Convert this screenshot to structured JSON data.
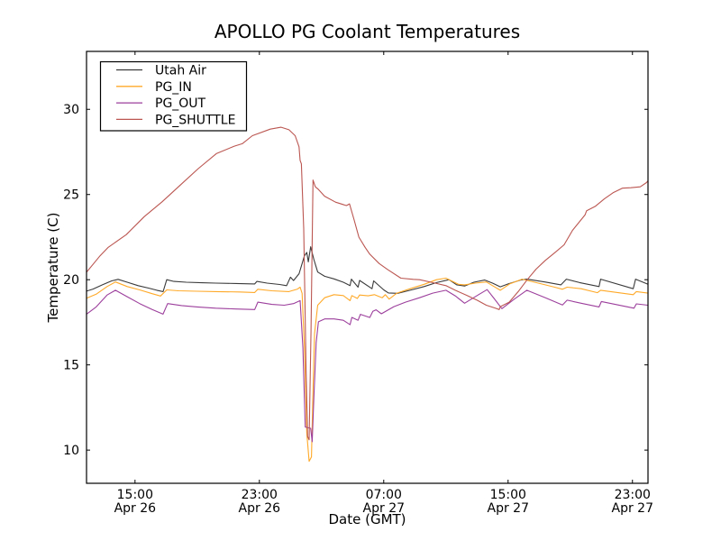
{
  "title": "APOLLO PG Coolant Temperatures",
  "chart_data": {
    "type": "line",
    "title": "APOLLO PG Coolant Temperatures",
    "xlabel": "Date (GMT)",
    "ylabel": "Temperature (C)",
    "x_unit": "hours since Apr 26 12:00 GMT",
    "xlim": [
      -0.12,
      36.0
    ],
    "ylim": [
      8.05,
      33.4
    ],
    "grid": false,
    "legend_position": "upper left",
    "frame_color": "#000000",
    "yticks": [
      10,
      15,
      20,
      25,
      30
    ],
    "xticks": [
      {
        "pos": 3,
        "time": "15:00",
        "date": "Apr 26"
      },
      {
        "pos": 11,
        "time": "23:00",
        "date": "Apr 26"
      },
      {
        "pos": 19,
        "time": "07:00",
        "date": "Apr 27"
      },
      {
        "pos": 27,
        "time": "15:00",
        "date": "Apr 27"
      },
      {
        "pos": 35,
        "time": "23:00",
        "date": "Apr 27"
      }
    ],
    "series": [
      {
        "name": "Utah Air",
        "color": "#3a3a3a",
        "points": [
          [
            -0.12,
            19.33
          ],
          [
            0.3,
            19.45
          ],
          [
            0.9,
            19.7
          ],
          [
            1.5,
            19.93
          ],
          [
            1.91,
            20.02
          ],
          [
            2.5,
            19.85
          ],
          [
            3.2,
            19.65
          ],
          [
            3.9,
            19.5
          ],
          [
            4.4,
            19.38
          ],
          [
            4.81,
            19.3
          ],
          [
            5.04,
            20.0
          ],
          [
            5.5,
            19.9
          ],
          [
            6.3,
            19.85
          ],
          [
            7.3,
            19.82
          ],
          [
            8.2,
            19.8
          ],
          [
            9.5,
            19.78
          ],
          [
            10.7,
            19.75
          ],
          [
            10.84,
            19.9
          ],
          [
            11.5,
            19.8
          ],
          [
            12.3,
            19.72
          ],
          [
            12.75,
            19.65
          ],
          [
            13.0,
            20.15
          ],
          [
            13.2,
            19.95
          ],
          [
            13.55,
            20.35
          ],
          [
            13.9,
            21.4
          ],
          [
            14.05,
            21.6
          ],
          [
            14.15,
            21.05
          ],
          [
            14.3,
            21.93
          ],
          [
            14.5,
            21.2
          ],
          [
            14.75,
            20.45
          ],
          [
            15.2,
            20.2
          ],
          [
            15.8,
            20.05
          ],
          [
            16.4,
            19.85
          ],
          [
            16.83,
            19.65
          ],
          [
            16.92,
            20.03
          ],
          [
            17.35,
            19.56
          ],
          [
            17.45,
            19.96
          ],
          [
            18.25,
            19.47
          ],
          [
            18.35,
            19.93
          ],
          [
            19.0,
            19.4
          ],
          [
            19.3,
            19.22
          ],
          [
            19.9,
            19.2
          ],
          [
            20.7,
            19.38
          ],
          [
            21.6,
            19.6
          ],
          [
            22.4,
            19.83
          ],
          [
            23.2,
            20.0
          ],
          [
            23.7,
            19.7
          ],
          [
            24.2,
            19.63
          ],
          [
            24.8,
            19.85
          ],
          [
            25.5,
            19.98
          ],
          [
            26.0,
            19.8
          ],
          [
            26.5,
            19.58
          ],
          [
            27.0,
            19.75
          ],
          [
            27.8,
            19.98
          ],
          [
            28.2,
            20.03
          ],
          [
            29.4,
            19.86
          ],
          [
            30.4,
            19.7
          ],
          [
            30.75,
            20.03
          ],
          [
            31.6,
            19.83
          ],
          [
            32.85,
            19.6
          ],
          [
            32.95,
            20.03
          ],
          [
            35.05,
            19.47
          ],
          [
            35.2,
            20.03
          ],
          [
            36.0,
            19.73
          ]
        ]
      },
      {
        "name": "PG_IN",
        "color": "#ffa928",
        "points": [
          [
            -0.12,
            18.91
          ],
          [
            0.5,
            19.15
          ],
          [
            1.2,
            19.6
          ],
          [
            1.74,
            19.87
          ],
          [
            2.5,
            19.6
          ],
          [
            3.3,
            19.4
          ],
          [
            4.1,
            19.18
          ],
          [
            4.64,
            19.04
          ],
          [
            5.04,
            19.4
          ],
          [
            5.8,
            19.35
          ],
          [
            7.0,
            19.32
          ],
          [
            8.2,
            19.3
          ],
          [
            9.7,
            19.28
          ],
          [
            10.7,
            19.25
          ],
          [
            10.9,
            19.44
          ],
          [
            11.8,
            19.35
          ],
          [
            12.9,
            19.3
          ],
          [
            13.45,
            19.45
          ],
          [
            13.62,
            19.56
          ],
          [
            13.75,
            19.2
          ],
          [
            13.9,
            16.0
          ],
          [
            14.05,
            11.0
          ],
          [
            14.2,
            9.34
          ],
          [
            14.35,
            9.6
          ],
          [
            14.45,
            13.5
          ],
          [
            14.55,
            16.83
          ],
          [
            14.75,
            18.5
          ],
          [
            15.2,
            18.94
          ],
          [
            15.8,
            19.12
          ],
          [
            16.4,
            19.07
          ],
          [
            16.83,
            18.77
          ],
          [
            16.95,
            19.07
          ],
          [
            17.3,
            18.9
          ],
          [
            17.45,
            19.1
          ],
          [
            18.0,
            19.05
          ],
          [
            18.4,
            19.12
          ],
          [
            18.9,
            18.94
          ],
          [
            19.1,
            19.12
          ],
          [
            19.35,
            18.86
          ],
          [
            19.85,
            19.21
          ],
          [
            20.7,
            19.47
          ],
          [
            21.6,
            19.73
          ],
          [
            22.4,
            20.0
          ],
          [
            23.0,
            20.09
          ],
          [
            23.8,
            19.73
          ],
          [
            24.2,
            19.7
          ],
          [
            24.9,
            19.8
          ],
          [
            25.6,
            19.87
          ],
          [
            26.1,
            19.6
          ],
          [
            26.5,
            19.38
          ],
          [
            27.1,
            19.75
          ],
          [
            27.9,
            20.03
          ],
          [
            28.8,
            19.83
          ],
          [
            30.0,
            19.56
          ],
          [
            30.5,
            19.44
          ],
          [
            30.8,
            19.56
          ],
          [
            31.7,
            19.47
          ],
          [
            32.75,
            19.24
          ],
          [
            32.95,
            19.38
          ],
          [
            35.05,
            19.12
          ],
          [
            35.25,
            19.3
          ],
          [
            36.0,
            19.21
          ]
        ]
      },
      {
        "name": "PG_OUT",
        "color": "#9c3f9c",
        "points": [
          [
            -0.12,
            17.98
          ],
          [
            0.5,
            18.4
          ],
          [
            1.2,
            19.1
          ],
          [
            1.74,
            19.38
          ],
          [
            2.5,
            19.0
          ],
          [
            3.3,
            18.6
          ],
          [
            4.1,
            18.25
          ],
          [
            4.8,
            17.98
          ],
          [
            5.1,
            18.6
          ],
          [
            6.0,
            18.48
          ],
          [
            7.0,
            18.4
          ],
          [
            8.2,
            18.33
          ],
          [
            9.5,
            18.28
          ],
          [
            10.7,
            18.25
          ],
          [
            10.9,
            18.68
          ],
          [
            11.8,
            18.55
          ],
          [
            12.6,
            18.5
          ],
          [
            13.2,
            18.6
          ],
          [
            13.62,
            18.77
          ],
          [
            13.8,
            16.0
          ],
          [
            13.95,
            11.35
          ],
          [
            14.3,
            11.28
          ],
          [
            14.4,
            10.49
          ],
          [
            14.5,
            13.0
          ],
          [
            14.65,
            16.3
          ],
          [
            14.8,
            17.53
          ],
          [
            15.2,
            17.7
          ],
          [
            15.8,
            17.7
          ],
          [
            16.4,
            17.62
          ],
          [
            16.83,
            17.36
          ],
          [
            16.95,
            17.79
          ],
          [
            17.35,
            17.62
          ],
          [
            17.5,
            17.97
          ],
          [
            18.1,
            17.78
          ],
          [
            18.3,
            18.14
          ],
          [
            18.5,
            18.23
          ],
          [
            18.85,
            18.0
          ],
          [
            19.65,
            18.42
          ],
          [
            20.4,
            18.68
          ],
          [
            21.3,
            18.94
          ],
          [
            22.15,
            19.21
          ],
          [
            23.0,
            19.38
          ],
          [
            23.6,
            19.05
          ],
          [
            24.2,
            18.62
          ],
          [
            25.1,
            19.12
          ],
          [
            25.65,
            19.42
          ],
          [
            26.1,
            18.9
          ],
          [
            26.6,
            18.3
          ],
          [
            27.4,
            18.86
          ],
          [
            28.2,
            19.38
          ],
          [
            29.4,
            18.94
          ],
          [
            30.5,
            18.52
          ],
          [
            30.8,
            18.8
          ],
          [
            31.7,
            18.62
          ],
          [
            32.85,
            18.4
          ],
          [
            33.0,
            18.72
          ],
          [
            35.1,
            18.33
          ],
          [
            35.25,
            18.58
          ],
          [
            36.0,
            18.5
          ]
        ]
      },
      {
        "name": "PG_SHUTTLE",
        "color": "#bb5651",
        "points": [
          [
            -0.12,
            20.44
          ],
          [
            0.3,
            20.9
          ],
          [
            0.75,
            21.4
          ],
          [
            1.28,
            21.9
          ],
          [
            2.43,
            22.64
          ],
          [
            3.59,
            23.7
          ],
          [
            4.75,
            24.58
          ],
          [
            5.91,
            25.55
          ],
          [
            7.07,
            26.52
          ],
          [
            8.23,
            27.4
          ],
          [
            9.39,
            27.84
          ],
          [
            9.9,
            27.98
          ],
          [
            10.55,
            28.45
          ],
          [
            11.7,
            28.84
          ],
          [
            12.4,
            28.95
          ],
          [
            12.9,
            28.8
          ],
          [
            13.3,
            28.45
          ],
          [
            13.55,
            27.8
          ],
          [
            13.62,
            27.0
          ],
          [
            13.7,
            26.8
          ],
          [
            13.85,
            23.0
          ],
          [
            14.0,
            15.0
          ],
          [
            14.1,
            10.8
          ],
          [
            14.2,
            10.6
          ],
          [
            14.32,
            17.0
          ],
          [
            14.45,
            25.85
          ],
          [
            14.6,
            25.45
          ],
          [
            14.8,
            25.3
          ],
          [
            15.2,
            24.9
          ],
          [
            15.9,
            24.55
          ],
          [
            16.6,
            24.35
          ],
          [
            16.8,
            24.45
          ],
          [
            17.1,
            23.5
          ],
          [
            17.4,
            22.5
          ],
          [
            17.8,
            21.9
          ],
          [
            18.1,
            21.5
          ],
          [
            18.7,
            20.95
          ],
          [
            19.25,
            20.6
          ],
          [
            20.1,
            20.09
          ],
          [
            20.9,
            20.02
          ],
          [
            21.3,
            20.0
          ],
          [
            22.15,
            19.83
          ],
          [
            23.0,
            19.65
          ],
          [
            23.6,
            19.38
          ],
          [
            24.3,
            19.1
          ],
          [
            25.0,
            18.8
          ],
          [
            25.6,
            18.5
          ],
          [
            26.2,
            18.32
          ],
          [
            26.43,
            18.25
          ],
          [
            26.5,
            18.42
          ],
          [
            27.07,
            18.68
          ],
          [
            27.65,
            19.3
          ],
          [
            28.23,
            20.0
          ],
          [
            28.8,
            20.62
          ],
          [
            29.4,
            21.14
          ],
          [
            30.0,
            21.58
          ],
          [
            30.6,
            22.05
          ],
          [
            31.15,
            22.9
          ],
          [
            31.95,
            23.8
          ],
          [
            32.05,
            24.05
          ],
          [
            32.6,
            24.3
          ],
          [
            33.2,
            24.75
          ],
          [
            33.75,
            25.1
          ],
          [
            34.35,
            25.37
          ],
          [
            34.9,
            25.4
          ],
          [
            35.5,
            25.45
          ],
          [
            35.9,
            25.7
          ],
          [
            36.0,
            25.8
          ]
        ]
      }
    ]
  }
}
